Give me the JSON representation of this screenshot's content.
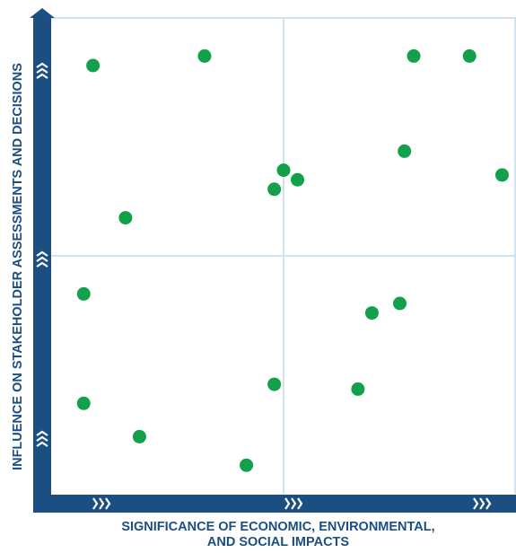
{
  "colors": {
    "axis": "#1b4f82",
    "grid": "#cfe3f3",
    "point": "#13a04a",
    "chevron": "#ffffff"
  },
  "axes": {
    "x_title_line1": "SIGNIFICANCE OF ECONOMIC, ENVIRONMENTAL,",
    "x_title_line2": "AND SOCIAL IMPACTS",
    "y_title": "INFLUENCE ON STAKEHOLDER ASSESSMENTS AND DECISIONS"
  },
  "chart_data": {
    "type": "scatter",
    "xlabel": "SIGNIFICANCE OF ECONOMIC, ENVIRONMENTAL, AND SOCIAL IMPACTS",
    "ylabel": "INFLUENCE ON STAKEHOLDER ASSESSMENTS AND DECISIONS",
    "xlim": [
      0,
      100
    ],
    "ylim": [
      0,
      100
    ],
    "grid": true,
    "quadrant_dividers": {
      "x": 50,
      "y": 50
    },
    "points": [
      {
        "x": 9,
        "y": 90
      },
      {
        "x": 33,
        "y": 92
      },
      {
        "x": 78,
        "y": 92
      },
      {
        "x": 90,
        "y": 92
      },
      {
        "x": 76,
        "y": 72
      },
      {
        "x": 50,
        "y": 68
      },
      {
        "x": 53,
        "y": 66
      },
      {
        "x": 97,
        "y": 67
      },
      {
        "x": 48,
        "y": 64
      },
      {
        "x": 16,
        "y": 58
      },
      {
        "x": 7,
        "y": 42
      },
      {
        "x": 75,
        "y": 40
      },
      {
        "x": 69,
        "y": 38
      },
      {
        "x": 48,
        "y": 23
      },
      {
        "x": 66,
        "y": 22
      },
      {
        "x": 7,
        "y": 19
      },
      {
        "x": 19,
        "y": 12
      },
      {
        "x": 42,
        "y": 6
      }
    ]
  }
}
